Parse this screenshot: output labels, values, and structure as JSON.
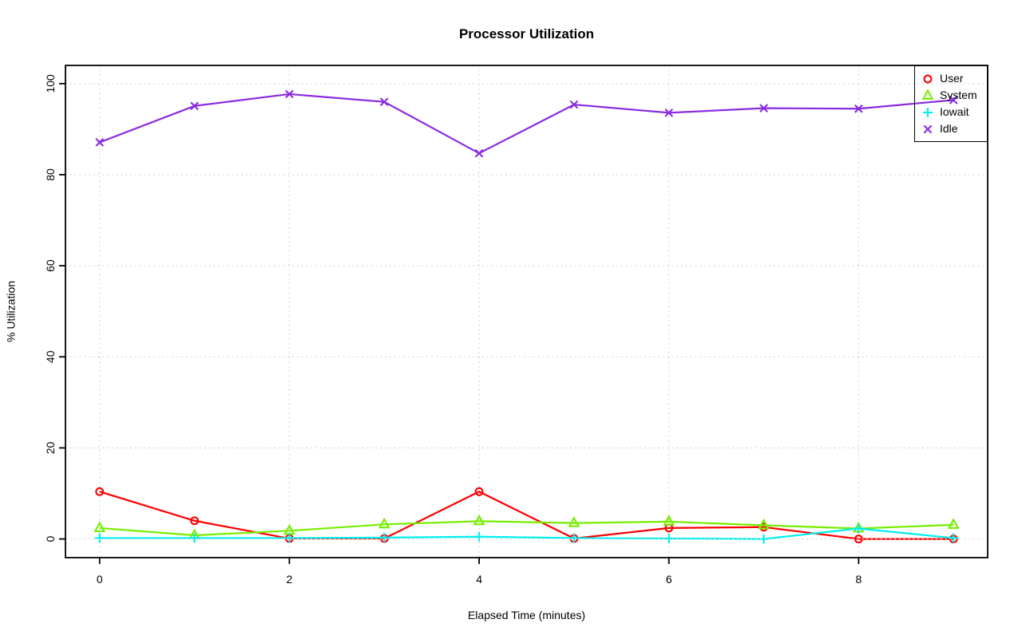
{
  "chart_data": {
    "type": "line",
    "title": "Processor Utilization",
    "xlabel": "Elapsed Time (minutes)",
    "ylabel": "% Utilization",
    "x": [
      0,
      1,
      2,
      3,
      4,
      5,
      6,
      7,
      8,
      9
    ],
    "series": [
      {
        "name": "User",
        "marker": "circle",
        "color": "#FF0000",
        "values": [
          10.4,
          4.0,
          0.1,
          0.1,
          10.4,
          0.1,
          2.4,
          2.6,
          0.0,
          0.0
        ]
      },
      {
        "name": "System",
        "marker": "triangle",
        "color": "#76EE00",
        "values": [
          2.4,
          0.8,
          1.8,
          3.2,
          3.9,
          3.5,
          3.8,
          3.0,
          2.3,
          3.1
        ]
      },
      {
        "name": "Iowait",
        "marker": "plus",
        "color": "#00EEEE",
        "values": [
          0.2,
          0.2,
          0.2,
          0.3,
          0.5,
          0.2,
          0.1,
          0.0,
          2.3,
          0.2
        ]
      },
      {
        "name": "Idle",
        "marker": "x",
        "color": "#8A2BE2",
        "values": [
          87.1,
          95.1,
          97.7,
          96.0,
          84.7,
          95.4,
          93.6,
          94.6,
          94.5,
          96.4
        ]
      }
    ],
    "xticks": [
      0,
      2,
      4,
      6,
      8
    ],
    "yticks": [
      0,
      20,
      40,
      60,
      80,
      100
    ],
    "xlim": [
      -0.36,
      9.36
    ],
    "ylim": [
      -4.1,
      104.0
    ],
    "grid": "dotted",
    "grid_color": "#C3C3C3",
    "axis_color": "#000000",
    "legend_position": "topright"
  }
}
